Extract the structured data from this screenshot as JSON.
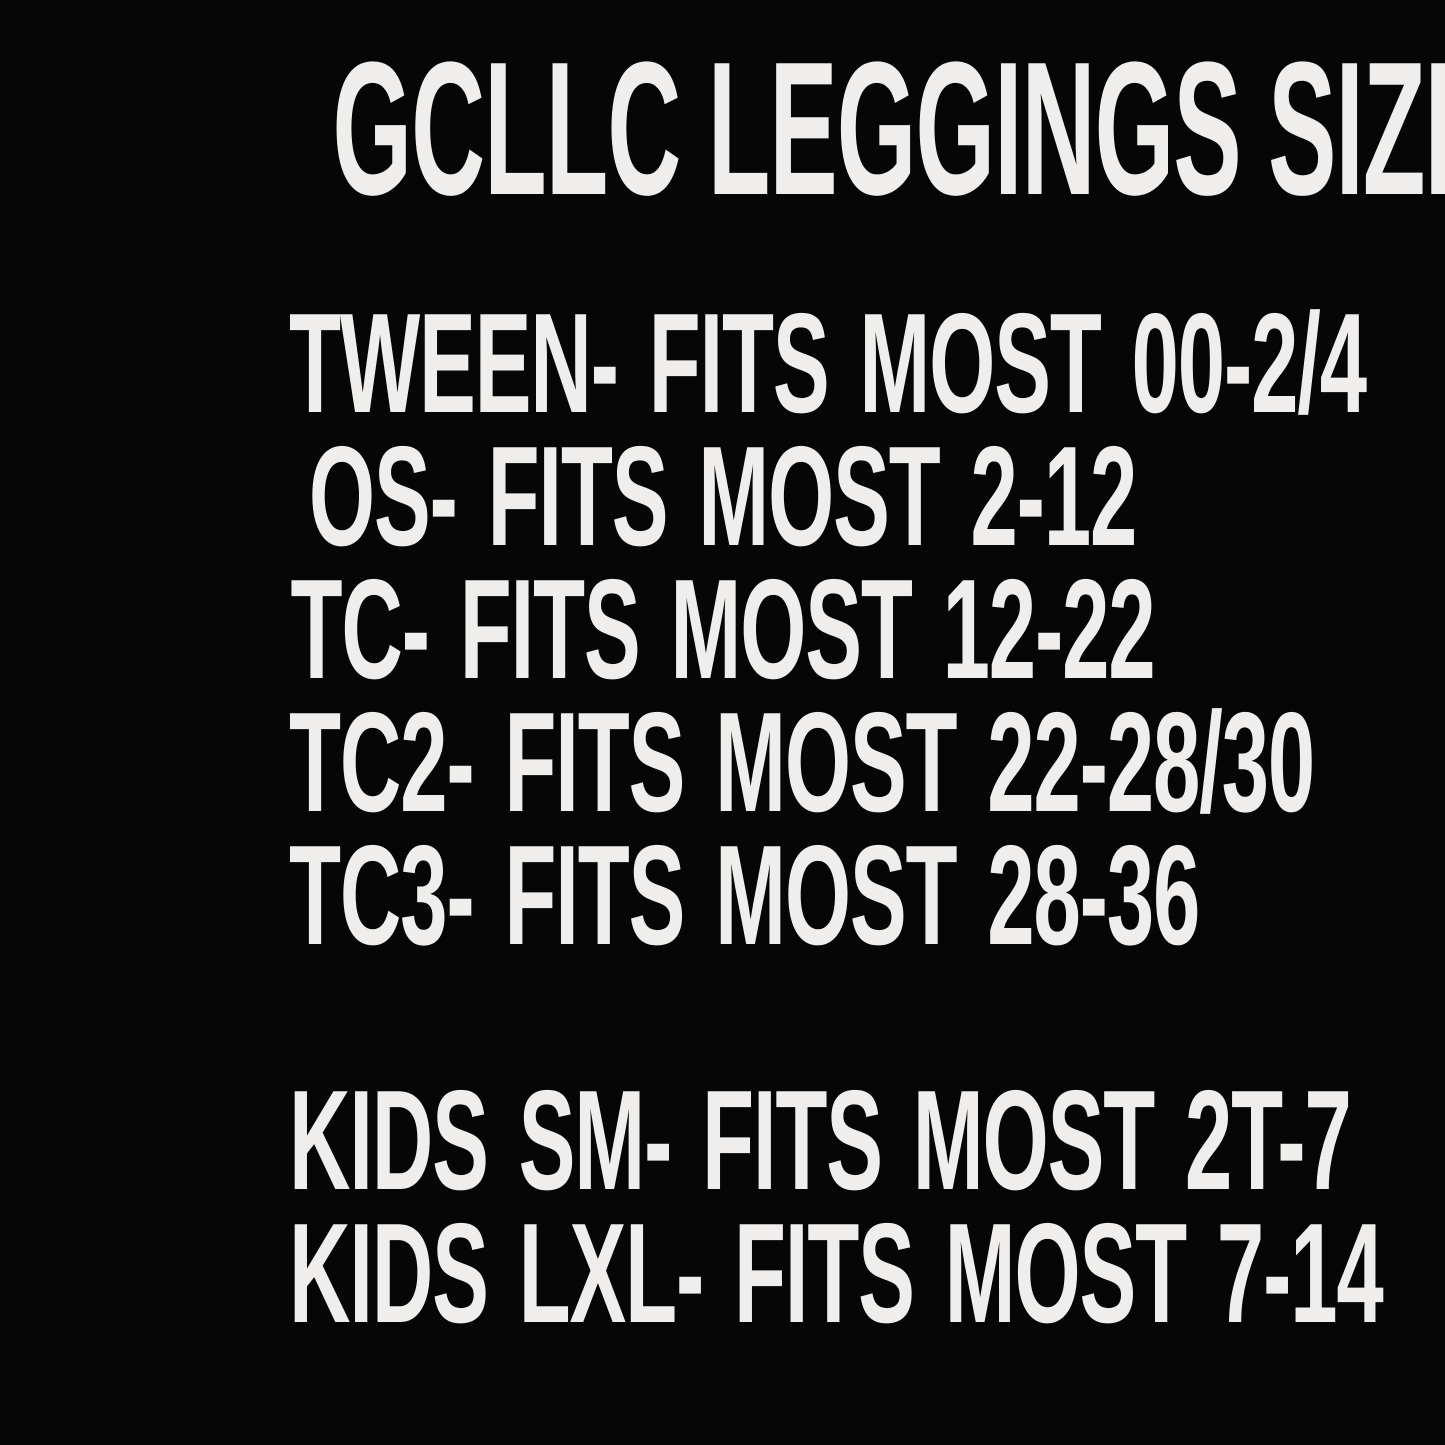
{
  "colors": {
    "background": "#060606",
    "text": "#efeeec"
  },
  "title": "GCLLC LEGGINGS SIZE CHART",
  "adult_sizes": [
    {
      "size": "TWEEN",
      "fits": "FITS MOST 00-2/4",
      "line": "TWEEN- FITS MOST 00-2/4"
    },
    {
      "size": "OS",
      "fits": "FITS MOST 2-12",
      "line": "OS- FITS MOST 2-12"
    },
    {
      "size": "TC",
      "fits": "FITS MOST 12-22",
      "line": "TC- FITS MOST 12-22"
    },
    {
      "size": "TC2",
      "fits": "FITS MOST 22-28/30",
      "line": "TC2- FITS MOST 22-28/30"
    },
    {
      "size": "TC3",
      "fits": "FITS MOST 28-36",
      "line": "TC3- FITS MOST 28-36"
    }
  ],
  "kids_sizes": [
    {
      "size": "KIDS SM",
      "fits": "FITS MOST 2T-7",
      "line": "KIDS SM- FITS MOST 2T-7"
    },
    {
      "size": "KIDS LXL",
      "fits": "FITS MOST 7-14",
      "line": "KIDS LXL- FITS MOST 7-14"
    }
  ]
}
